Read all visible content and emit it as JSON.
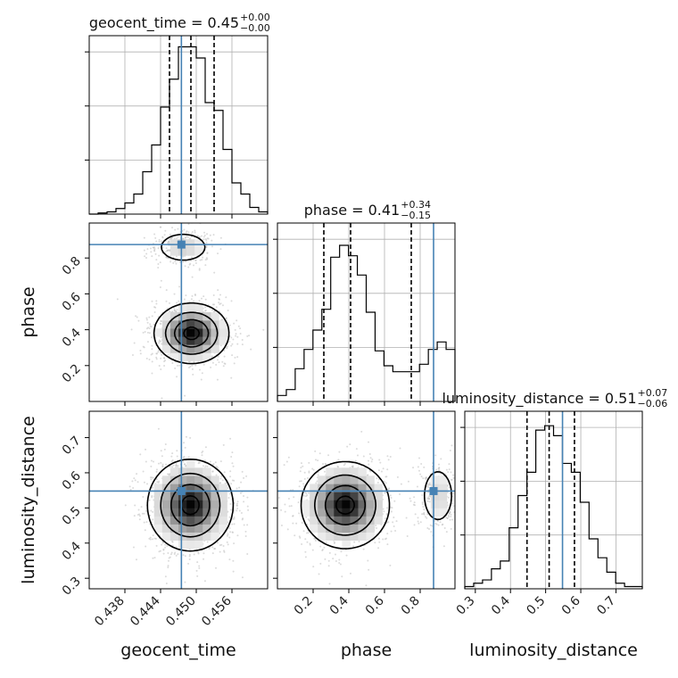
{
  "chart_data": {
    "type": "corner",
    "colors": {
      "truth": "#4682b4",
      "hist": "#000000",
      "contour": "#000000",
      "grid": "#b0b0b0"
    },
    "params": [
      {
        "key": "geocent_time",
        "label": "geocent_time",
        "range": [
          0.432,
          0.462
        ],
        "ticks": [
          0.438,
          0.444,
          0.45,
          0.456
        ],
        "tick_labels": [
          "0.438",
          "0.444",
          "0.450",
          "0.456"
        ],
        "truth": 0.4475,
        "quantiles": [
          0.4455,
          0.4491,
          0.453
        ],
        "title": {
          "name": "geocent_time",
          "value": "0.45",
          "plus": "+0.00",
          "minus": "−0.00"
        }
      },
      {
        "key": "phase",
        "label": "phase",
        "range": [
          0.0,
          0.995
        ],
        "ticks": [
          0.2,
          0.4,
          0.6,
          0.8
        ],
        "tick_labels": [
          "0.2",
          "0.4",
          "0.6",
          "0.8"
        ],
        "truth": 0.875,
        "quantiles": [
          0.26,
          0.41,
          0.75
        ],
        "title": {
          "name": "phase",
          "value": "0.41",
          "plus": "+0.34",
          "minus": "−0.15"
        }
      },
      {
        "key": "luminosity_distance",
        "label": "luminosity_distance",
        "range": [
          0.27,
          0.775
        ],
        "ticks": [
          0.3,
          0.4,
          0.5,
          0.6,
          0.7
        ],
        "tick_labels": [
          "0.3",
          "0.4",
          "0.5",
          "0.6",
          "0.7"
        ],
        "truth": 0.548,
        "quantiles": [
          0.447,
          0.51,
          0.582
        ],
        "title": {
          "name": "luminosity_distance",
          "value": "0.51",
          "plus": "+0.07",
          "minus": "−0.06"
        }
      }
    ],
    "histograms": [
      {
        "param": "geocent_time",
        "bin_edges": [
          0.432,
          0.4335,
          0.435,
          0.4365,
          0.438,
          0.4395,
          0.441,
          0.4425,
          0.444,
          0.4455,
          0.447,
          0.4485,
          0.45,
          0.4515,
          0.453,
          0.4545,
          0.456,
          0.4575,
          0.459,
          0.4605,
          0.462
        ],
        "counts": [
          0,
          1,
          2,
          5,
          10,
          18,
          38,
          62,
          96,
          121,
          150,
          150,
          140,
          100,
          93,
          58,
          28,
          18,
          6,
          2
        ],
        "ymax": 160
      },
      {
        "param": "phase",
        "bin_edges": [
          0.0,
          0.0498,
          0.0995,
          0.1493,
          0.199,
          0.2488,
          0.2985,
          0.3483,
          0.398,
          0.4478,
          0.4975,
          0.5473,
          0.597,
          0.6468,
          0.6965,
          0.7463,
          0.796,
          0.8458,
          0.8955,
          0.9453,
          0.995
        ],
        "counts": [
          4,
          8,
          22,
          35,
          48,
          62,
          97,
          105,
          98,
          85,
          60,
          34,
          24,
          20,
          20,
          20,
          25,
          35,
          40,
          35
        ],
        "ymax": 120
      },
      {
        "param": "luminosity_distance",
        "bin_edges": [
          0.27,
          0.2953,
          0.3205,
          0.3458,
          0.371,
          0.3963,
          0.4215,
          0.4468,
          0.472,
          0.4973,
          0.5225,
          0.5478,
          0.573,
          0.5983,
          0.6235,
          0.6488,
          0.674,
          0.6993,
          0.7245,
          0.7498,
          0.775
        ],
        "counts": [
          2,
          5,
          8,
          18,
          25,
          55,
          84,
          105,
          143,
          147,
          138,
          113,
          105,
          78,
          45,
          28,
          15,
          5,
          2,
          2
        ],
        "ymax": 160
      }
    ],
    "blobs": [
      {
        "x": "geocent_time",
        "y": "phase",
        "comps": [
          {
            "mx": 0.4492,
            "my": 0.38,
            "sx": 0.0028,
            "sy": 0.075,
            "w": 0.78
          },
          {
            "mx": 0.4478,
            "my": 0.86,
            "sx": 0.0023,
            "sy": 0.045,
            "w": 0.22
          }
        ],
        "contour_levels": [
          0.08,
          0.3,
          0.6,
          0.9
        ]
      },
      {
        "x": "geocent_time",
        "y": "luminosity_distance",
        "comps": [
          {
            "mx": 0.449,
            "my": 0.508,
            "sx": 0.0032,
            "sy": 0.058,
            "w": 1.0
          }
        ],
        "contour_levels": [
          0.08,
          0.3,
          0.6,
          0.9
        ]
      },
      {
        "x": "phase",
        "y": "luminosity_distance",
        "comps": [
          {
            "mx": 0.38,
            "my": 0.508,
            "sx": 0.11,
            "sy": 0.055,
            "w": 0.8
          },
          {
            "mx": 0.9,
            "my": 0.535,
            "sx": 0.05,
            "sy": 0.045,
            "w": 0.2
          }
        ],
        "contour_levels": [
          0.08,
          0.3,
          0.6,
          0.9
        ]
      }
    ]
  }
}
